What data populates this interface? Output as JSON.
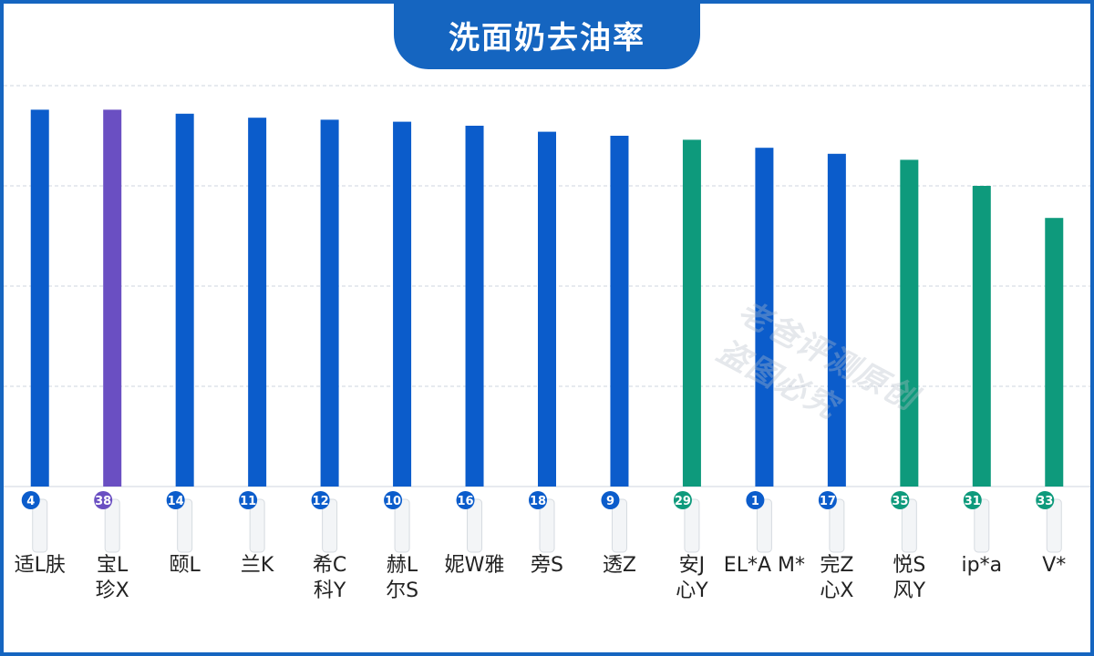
{
  "title": "洗面奶去油率",
  "watermark": [
    "老爸评测原创",
    "盗图必究"
  ],
  "chart_data": {
    "type": "bar",
    "title": "洗面奶去油率",
    "xlabel": "",
    "ylabel": "",
    "ylim": [
      0,
      100
    ],
    "grid": true,
    "series_colors": {
      "blue": "#0b5ccb",
      "purple": "#6a4fc2",
      "green": "#0e9a7c"
    },
    "categories": [
      "适L肤",
      "宝L\n珍X",
      "颐L",
      "兰K",
      "希C\n科Y",
      "赫L\n尔S",
      "妮W雅",
      "旁S",
      "透Z",
      "安J\n心Y",
      "EL*A M*",
      "完Z\n心X",
      "悦S\n风Y",
      "ip*a",
      "V*"
    ],
    "values": [
      94,
      94,
      93,
      92,
      91.5,
      91,
      90,
      88.5,
      87.5,
      86.5,
      84.5,
      83,
      81.5,
      75,
      67
    ],
    "colors": [
      "blue",
      "purple",
      "blue",
      "blue",
      "blue",
      "blue",
      "blue",
      "blue",
      "blue",
      "green",
      "blue",
      "blue",
      "green",
      "green",
      "green"
    ],
    "badges": [
      "4",
      "38",
      "14",
      "11",
      "12",
      "10",
      "16",
      "18",
      "9",
      "29",
      "1",
      "17",
      "35",
      "31",
      "33"
    ]
  }
}
